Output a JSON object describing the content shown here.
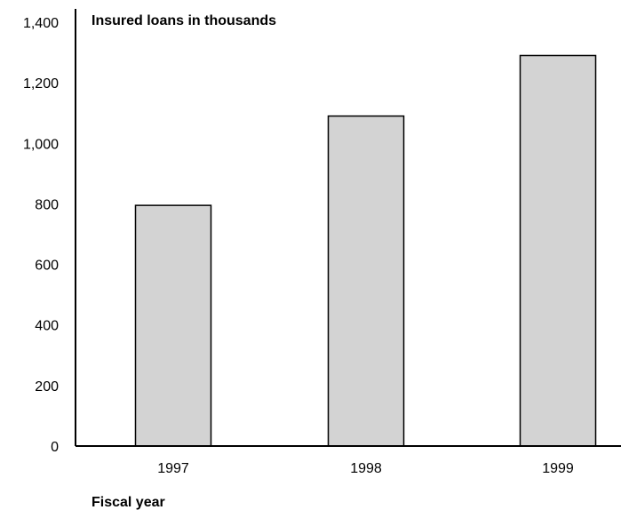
{
  "chart_data": {
    "type": "bar",
    "title": "Insured loans in thousands",
    "xlabel": "Fiscal year",
    "ylabel": "",
    "categories": [
      "1997",
      "1998",
      "1999"
    ],
    "values": [
      795,
      1090,
      1290
    ],
    "ylim": [
      0,
      1400
    ],
    "yticks": [
      0,
      200,
      400,
      600,
      800,
      1000,
      1200,
      1400
    ],
    "ytick_labels": [
      "0",
      "200",
      "400",
      "600",
      "800",
      "1,000",
      "1,200",
      "1,400"
    ],
    "grid": false,
    "legend": "none",
    "colors": {
      "bar_fill": "#d3d3d3",
      "bar_stroke": "#000000",
      "axis": "#000000"
    }
  }
}
